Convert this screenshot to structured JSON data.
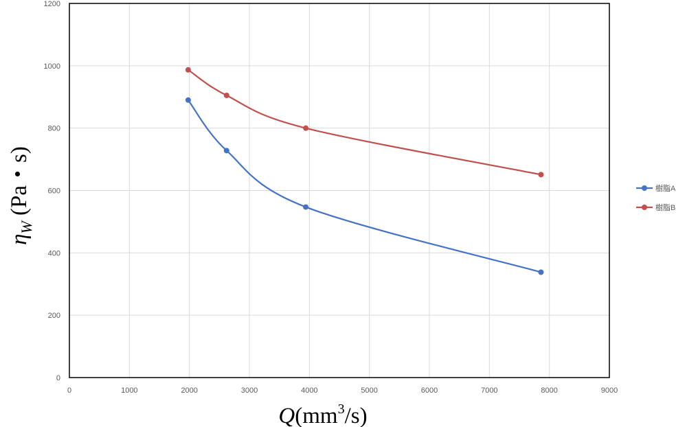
{
  "chart_data": {
    "type": "line",
    "smooth": true,
    "x_ticks": [
      0,
      1000,
      2000,
      3000,
      4000,
      5000,
      6000,
      7000,
      8000,
      9000
    ],
    "y_ticks": [
      0,
      200,
      400,
      600,
      800,
      1000,
      1200
    ],
    "xlim": [
      0,
      9000
    ],
    "ylim": [
      0,
      1200
    ],
    "grid": true,
    "legend_position": "right",
    "xlabel": {
      "var": "Q",
      "pre": "(mm",
      "sup": "3",
      "post": "/s)"
    },
    "ylabel": {
      "var": "η",
      "sub": "W",
      "units": " (Pa・s)"
    },
    "series": [
      {
        "name": "樹脂A",
        "color": "#4472c4",
        "x": [
          1980,
          2620,
          3940,
          7860
        ],
        "y": [
          890,
          728,
          547,
          338
        ]
      },
      {
        "name": "樹脂B",
        "color": "#c0504d",
        "x": [
          1980,
          2620,
          3940,
          7860
        ],
        "y": [
          987,
          905,
          800,
          651
        ]
      }
    ]
  }
}
